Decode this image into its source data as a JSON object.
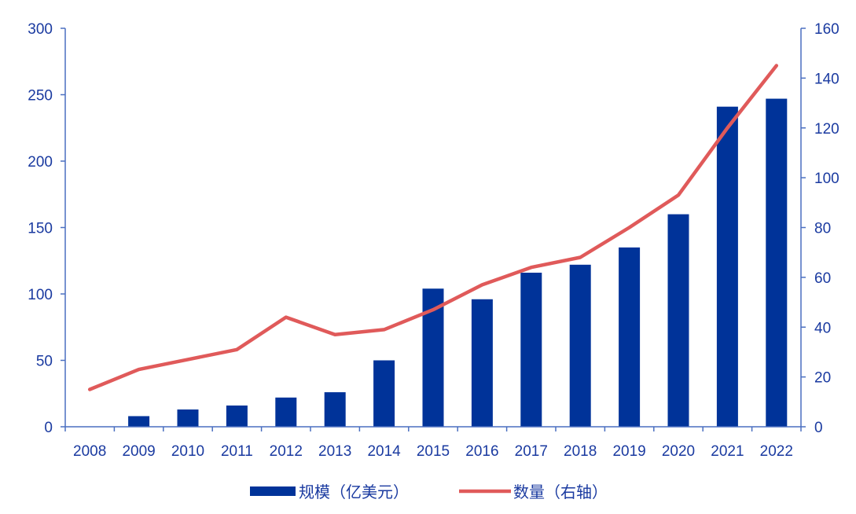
{
  "chart_data": {
    "type": "bar",
    "categories": [
      "2008",
      "2009",
      "2010",
      "2011",
      "2012",
      "2013",
      "2014",
      "2015",
      "2016",
      "2017",
      "2018",
      "2019",
      "2020",
      "2021",
      "2022"
    ],
    "series": [
      {
        "name": "规模（亿美元）",
        "type": "bar",
        "axis": "left",
        "color": "#003399",
        "values": [
          0,
          8,
          13,
          16,
          22,
          26,
          50,
          104,
          96,
          116,
          122,
          135,
          160,
          241,
          247
        ]
      },
      {
        "name": "数量（右轴）",
        "type": "line",
        "axis": "right",
        "color": "#e05a5a",
        "values": [
          15,
          23,
          27,
          31,
          44,
          37,
          39,
          47,
          57,
          64,
          68,
          80,
          93,
          120,
          145
        ]
      }
    ],
    "left_axis": {
      "min": 0,
      "max": 300,
      "ticks": [
        "0",
        "50",
        "100",
        "150",
        "200",
        "250",
        "300"
      ]
    },
    "right_axis": {
      "min": 0,
      "max": 160,
      "ticks": [
        "0",
        "20",
        "40",
        "60",
        "80",
        "100",
        "120",
        "140",
        "160"
      ]
    },
    "legend": {
      "position": "bottom"
    }
  }
}
